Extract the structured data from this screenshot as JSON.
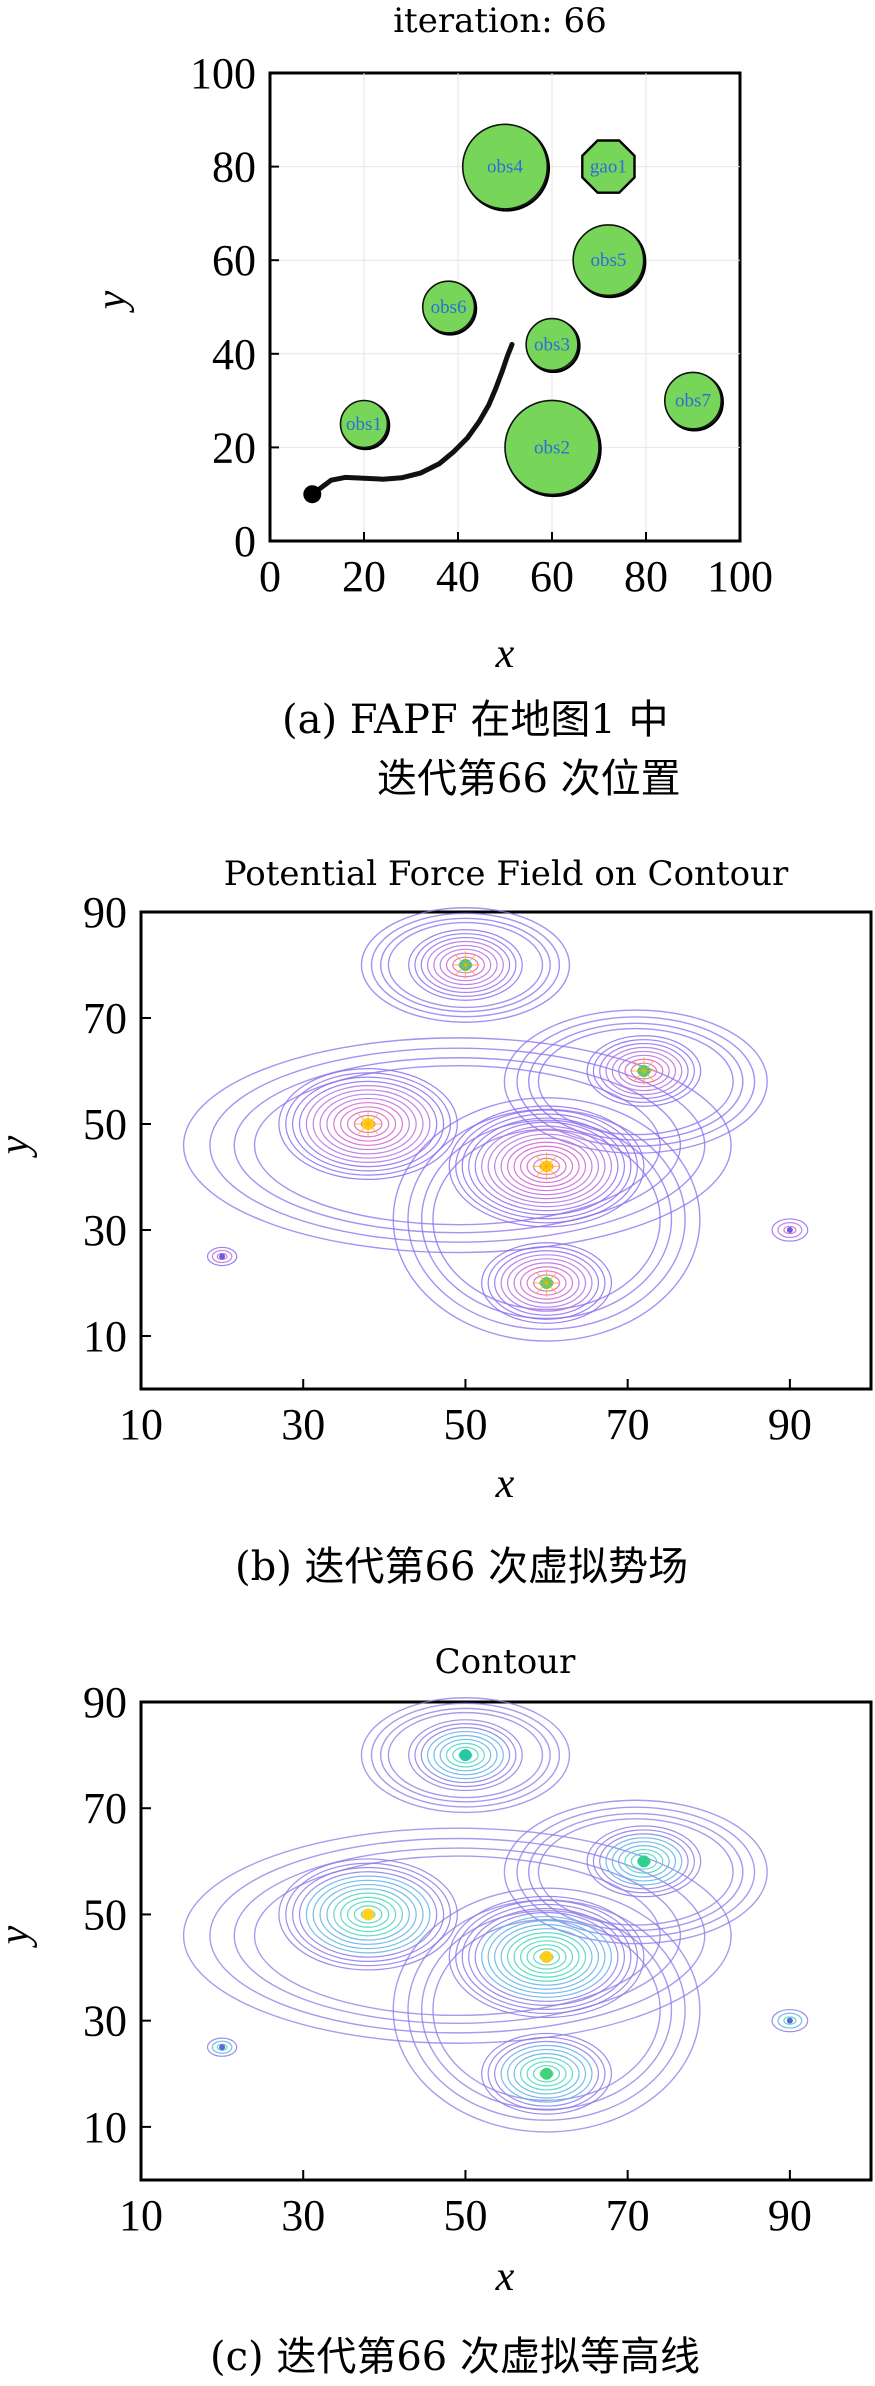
{
  "chart_data": [
    {
      "type": "scatter",
      "title": "iteration: 66",
      "xlabel": "x",
      "ylabel": "y",
      "xlim": [
        0,
        100
      ],
      "ylim": [
        0,
        100
      ],
      "xticks": [
        0,
        20,
        40,
        60,
        80,
        100
      ],
      "yticks": [
        0,
        20,
        40,
        60,
        80,
        100
      ],
      "caption_line1": "(a)  FAPF 在地图1 中",
      "caption_line2": "迭代第66 次位置",
      "fill_color": "#77d65a",
      "label_color": "#2a6fd6",
      "obstacles": [
        {
          "label": "obs1",
          "x": 20,
          "y": 25,
          "r": 5
        },
        {
          "label": "obs2",
          "x": 60,
          "y": 20,
          "r": 10
        },
        {
          "label": "obs3",
          "x": 60,
          "y": 42,
          "r": 5.5
        },
        {
          "label": "obs4",
          "x": 50,
          "y": 80,
          "r": 9
        },
        {
          "label": "obs5",
          "x": 72,
          "y": 60,
          "r": 7.5
        },
        {
          "label": "obs6",
          "x": 38,
          "y": 50,
          "r": 5.5
        },
        {
          "label": "obs7",
          "x": 90,
          "y": 30,
          "r": 6
        }
      ],
      "goal": {
        "label": "gao1",
        "x": 72,
        "y": 80,
        "r": 6
      },
      "start": {
        "x": 9,
        "y": 10
      },
      "path": [
        [
          9,
          10
        ],
        [
          11,
          11.5
        ],
        [
          13,
          13
        ],
        [
          16,
          13.6
        ],
        [
          20,
          13.4
        ],
        [
          24,
          13.2
        ],
        [
          28,
          13.5
        ],
        [
          32,
          14.5
        ],
        [
          36,
          16.5
        ],
        [
          39,
          19
        ],
        [
          42,
          22
        ],
        [
          44.5,
          25.5
        ],
        [
          46.5,
          29
        ],
        [
          48,
          32.5
        ],
        [
          49.5,
          36.5
        ],
        [
          50.5,
          39.5
        ],
        [
          51.5,
          42
        ]
      ]
    },
    {
      "type": "contour",
      "title": "Potential Force Field on Contour",
      "xlabel": "x",
      "ylabel": "y",
      "xlim": [
        10,
        100
      ],
      "ylim": [
        0,
        90
      ],
      "xticks": [
        10,
        30,
        50,
        70,
        90
      ],
      "yticks": [
        10,
        30,
        50,
        70,
        90
      ],
      "caption": "(b)  迭代第66 次虚拟势场",
      "centers": [
        {
          "x": 50,
          "y": 80
        },
        {
          "x": 38,
          "y": 50
        },
        {
          "x": 60,
          "y": 42
        },
        {
          "x": 60,
          "y": 20
        },
        {
          "x": 72,
          "y": 60
        },
        {
          "x": 20,
          "y": 25
        },
        {
          "x": 90,
          "y": 30
        }
      ]
    },
    {
      "type": "contour",
      "title": "Contour",
      "xlabel": "x",
      "ylabel": "y",
      "xlim": [
        10,
        100
      ],
      "ylim": [
        0,
        90
      ],
      "xticks": [
        10,
        30,
        50,
        70,
        90
      ],
      "yticks": [
        10,
        30,
        50,
        70,
        90
      ],
      "caption": "(c)  迭代第66 次虚拟等高线",
      "centers": [
        {
          "x": 50,
          "y": 80
        },
        {
          "x": 38,
          "y": 50
        },
        {
          "x": 60,
          "y": 42
        },
        {
          "x": 60,
          "y": 20
        },
        {
          "x": 72,
          "y": 60
        },
        {
          "x": 20,
          "y": 25
        },
        {
          "x": 90,
          "y": 30
        }
      ]
    }
  ]
}
